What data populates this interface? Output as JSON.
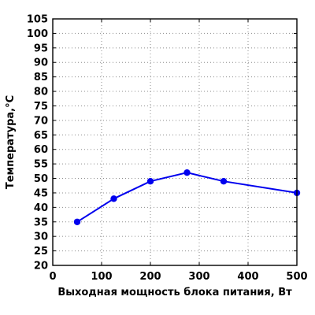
{
  "chart_data": {
    "type": "line",
    "xlabel": "Выходная мощность блока питания, Вт",
    "ylabel": "Температура,°С",
    "xlim": [
      0,
      500
    ],
    "ylim": [
      20,
      105
    ],
    "x_ticks": [
      0,
      100,
      200,
      300,
      400,
      500
    ],
    "y_ticks": [
      20,
      25,
      30,
      35,
      40,
      45,
      50,
      55,
      60,
      65,
      70,
      75,
      80,
      85,
      90,
      95,
      100,
      105
    ],
    "grid": true,
    "series": [
      {
        "x": [
          50,
          125,
          200,
          275,
          350,
          500
        ],
        "values": [
          35,
          43,
          49,
          52,
          49,
          45
        ],
        "color": "#0000ee",
        "marker": "circle"
      }
    ]
  }
}
